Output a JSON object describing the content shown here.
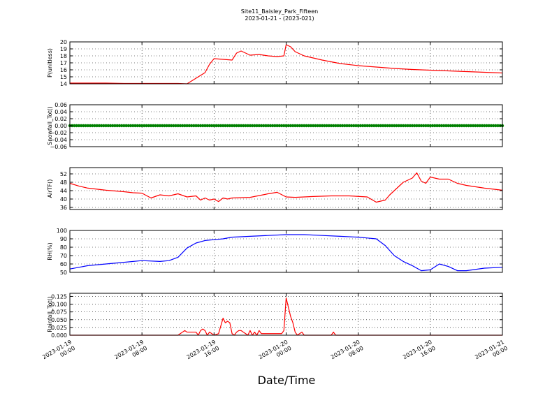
{
  "figure": {
    "title_line1": "Site11_Baisley_Park_Fifteen",
    "title_line2": "2023-01-21 - (2023-021)",
    "xlabel": "Date/Time",
    "x_ticks": [
      {
        "l1": "2023-01-19",
        "l2": "00:00"
      },
      {
        "l1": "2023-01-19",
        "l2": "08:00"
      },
      {
        "l1": "2023-01-19",
        "l2": "16:00"
      },
      {
        "l1": "2023-01-20",
        "l2": "00:00"
      },
      {
        "l1": "2023-01-20",
        "l2": "08:00"
      },
      {
        "l1": "2023-01-20",
        "l2": "16:00"
      },
      {
        "l1": "2023-01-21",
        "l2": "00:00"
      }
    ]
  },
  "chart_data": [
    {
      "type": "line",
      "ylabel": "P(unitless)",
      "color": "#ff0000",
      "ylim": [
        14,
        20
      ],
      "yticks": [
        14,
        15,
        16,
        17,
        18,
        19,
        20
      ],
      "ytick_labels": [
        "14",
        "15",
        "16",
        "17",
        "18",
        "19",
        "20"
      ],
      "xlim": [
        "2023-01-19 00:00",
        "2023-01-21 00:00"
      ],
      "x": [
        "2023-01-19 00:00",
        "2023-01-19 02:00",
        "2023-01-19 04:00",
        "2023-01-19 06:00",
        "2023-01-19 08:00",
        "2023-01-19 10:00",
        "2023-01-19 12:00",
        "2023-01-19 13:00",
        "2023-01-19 14:00",
        "2023-01-19 15:00",
        "2023-01-19 15:30",
        "2023-01-19 16:00",
        "2023-01-19 18:00",
        "2023-01-19 18:30",
        "2023-01-19 19:00",
        "2023-01-19 20:00",
        "2023-01-19 21:00",
        "2023-01-19 22:00",
        "2023-01-19 23:00",
        "2023-01-19 23:45",
        "2023-01-20 00:00",
        "2023-01-20 00:30",
        "2023-01-20 01:00",
        "2023-01-20 02:00",
        "2023-01-20 04:00",
        "2023-01-20 06:00",
        "2023-01-20 08:00",
        "2023-01-20 10:00",
        "2023-01-20 12:00",
        "2023-01-20 14:00",
        "2023-01-20 16:00",
        "2023-01-20 18:00",
        "2023-01-20 20:00",
        "2023-01-20 22:00",
        "2023-01-21 00:00"
      ],
      "values": [
        14.1,
        14.1,
        14.1,
        14.05,
        14.05,
        14.05,
        14.05,
        14.0,
        14.8,
        15.6,
        16.8,
        17.6,
        17.4,
        18.4,
        18.7,
        18.1,
        18.2,
        18.0,
        17.9,
        18.0,
        19.6,
        19.3,
        18.6,
        18.0,
        17.4,
        16.9,
        16.6,
        16.4,
        16.2,
        16.05,
        15.95,
        15.85,
        15.75,
        15.65,
        15.55
      ]
    },
    {
      "type": "scatter",
      "ylabel": "Snowfall_Tot()",
      "color": "#008000",
      "ylim": [
        -0.06,
        0.06
      ],
      "yticks": [
        -0.06,
        -0.04,
        -0.02,
        0.0,
        0.02,
        0.04,
        0.06
      ],
      "ytick_labels": [
        "−0.06",
        "−0.04",
        "−0.02",
        "0.00",
        "0.02",
        "0.04",
        "0.06"
      ],
      "xlim": [
        "2023-01-19 00:00",
        "2023-01-21 00:00"
      ],
      "x_range": [
        "2023-01-19 00:00",
        "2023-01-21 00:00"
      ],
      "interval_minutes": 15,
      "constant_value": 0.0
    },
    {
      "type": "line",
      "ylabel": "AirTF()",
      "color": "#ff0000",
      "ylim": [
        35,
        55
      ],
      "yticks": [
        36,
        40,
        44,
        48,
        52
      ],
      "ytick_labels": [
        "36",
        "40",
        "44",
        "48",
        "52"
      ],
      "xlim": [
        "2023-01-19 00:00",
        "2023-01-21 00:00"
      ],
      "x": [
        "2023-01-19 00:00",
        "2023-01-19 01:00",
        "2023-01-19 02:00",
        "2023-01-19 04:00",
        "2023-01-19 06:00",
        "2023-01-19 07:00",
        "2023-01-19 08:00",
        "2023-01-19 09:00",
        "2023-01-19 10:00",
        "2023-01-19 11:00",
        "2023-01-19 12:00",
        "2023-01-19 13:00",
        "2023-01-19 14:00",
        "2023-01-19 14:30",
        "2023-01-19 15:00",
        "2023-01-19 15:30",
        "2023-01-19 16:00",
        "2023-01-19 16:30",
        "2023-01-19 17:00",
        "2023-01-19 17:30",
        "2023-01-19 18:00",
        "2023-01-19 20:00",
        "2023-01-19 22:00",
        "2023-01-19 23:00",
        "2023-01-20 00:00",
        "2023-01-20 01:00",
        "2023-01-20 03:00",
        "2023-01-20 05:00",
        "2023-01-20 07:00",
        "2023-01-20 09:00",
        "2023-01-20 10:00",
        "2023-01-20 11:00",
        "2023-01-20 11:30",
        "2023-01-20 12:00",
        "2023-01-20 13:00",
        "2023-01-20 14:00",
        "2023-01-20 14:30",
        "2023-01-20 15:00",
        "2023-01-20 15:30",
        "2023-01-20 16:00",
        "2023-01-20 17:00",
        "2023-01-20 18:00",
        "2023-01-20 18:30",
        "2023-01-20 19:00",
        "2023-01-20 20:00",
        "2023-01-20 22:00",
        "2023-01-21 00:00"
      ],
      "values": [
        47.5,
        46.2,
        45.2,
        44.2,
        43.5,
        43.0,
        42.8,
        40.5,
        42.0,
        41.5,
        42.5,
        41.0,
        41.5,
        39.5,
        40.5,
        39.5,
        40.0,
        38.8,
        40.5,
        40.0,
        40.5,
        40.8,
        42.5,
        43.2,
        41.0,
        40.8,
        41.2,
        41.5,
        41.5,
        41.0,
        38.5,
        39.5,
        42.0,
        44.0,
        48.0,
        50.0,
        52.5,
        48.5,
        47.5,
        50.5,
        49.5,
        49.5,
        48.5,
        47.5,
        46.5,
        45.2,
        44.2
      ]
    },
    {
      "type": "line",
      "ylabel": "RH(%)",
      "color": "#0000ff",
      "ylim": [
        50,
        100
      ],
      "yticks": [
        50,
        60,
        70,
        80,
        90,
        100
      ],
      "ytick_labels": [
        "50",
        "60",
        "70",
        "80",
        "90",
        "100"
      ],
      "xlim": [
        "2023-01-19 00:00",
        "2023-01-21 00:00"
      ],
      "x": [
        "2023-01-19 00:00",
        "2023-01-19 02:00",
        "2023-01-19 04:00",
        "2023-01-19 06:00",
        "2023-01-19 08:00",
        "2023-01-19 10:00",
        "2023-01-19 11:00",
        "2023-01-19 12:00",
        "2023-01-19 13:00",
        "2023-01-19 14:00",
        "2023-01-19 15:00",
        "2023-01-19 16:00",
        "2023-01-19 17:00",
        "2023-01-19 18:00",
        "2023-01-19 20:00",
        "2023-01-19 22:00",
        "2023-01-20 00:00",
        "2023-01-20 02:00",
        "2023-01-20 04:00",
        "2023-01-20 06:00",
        "2023-01-20 08:00",
        "2023-01-20 09:00",
        "2023-01-20 10:00",
        "2023-01-20 11:00",
        "2023-01-20 12:00",
        "2023-01-20 13:00",
        "2023-01-20 14:00",
        "2023-01-20 15:00",
        "2023-01-20 16:00",
        "2023-01-20 17:00",
        "2023-01-20 18:00",
        "2023-01-20 19:00",
        "2023-01-20 20:00",
        "2023-01-20 22:00",
        "2023-01-21 00:00"
      ],
      "values": [
        54,
        58,
        60,
        62,
        64,
        63,
        64,
        68,
        79,
        85,
        88,
        89,
        90,
        92,
        93,
        94,
        95,
        95,
        94,
        93,
        92,
        91,
        90,
        82,
        70,
        63,
        58,
        52,
        53,
        60,
        57,
        52,
        52,
        55,
        56
      ]
    },
    {
      "type": "line",
      "ylabel": "Rainfall_Tot()",
      "color": "#ff0000",
      "ylim": [
        0,
        0.135
      ],
      "yticks": [
        0,
        0.025,
        0.05,
        0.075,
        0.1,
        0.125
      ],
      "ytick_labels": [
        "0.000",
        "0.025",
        "0.050",
        "0.075",
        "0.100",
        "0.125"
      ],
      "xlim": [
        "2023-01-19 00:00",
        "2023-01-21 00:00"
      ],
      "x": [
        "2023-01-19 00:00",
        "2023-01-19 12:00",
        "2023-01-19 12:15",
        "2023-01-19 12:30",
        "2023-01-19 12:45",
        "2023-01-19 13:00",
        "2023-01-19 14:00",
        "2023-01-19 14:15",
        "2023-01-19 14:30",
        "2023-01-19 14:45",
        "2023-01-19 15:00",
        "2023-01-19 15:15",
        "2023-01-19 15:30",
        "2023-01-19 15:45",
        "2023-01-19 16:00",
        "2023-01-19 16:30",
        "2023-01-19 16:45",
        "2023-01-19 17:00",
        "2023-01-19 17:15",
        "2023-01-19 17:30",
        "2023-01-19 17:45",
        "2023-01-19 18:00",
        "2023-01-19 18:15",
        "2023-01-19 18:30",
        "2023-01-19 18:45",
        "2023-01-19 19:00",
        "2023-01-19 19:15",
        "2023-01-19 19:30",
        "2023-01-19 19:45",
        "2023-01-19 20:00",
        "2023-01-19 20:15",
        "2023-01-19 20:30",
        "2023-01-19 20:45",
        "2023-01-19 21:00",
        "2023-01-19 21:15",
        "2023-01-19 21:30",
        "2023-01-19 21:45",
        "2023-01-19 22:00",
        "2023-01-19 22:15",
        "2023-01-19 22:30",
        "2023-01-19 23:30",
        "2023-01-19 23:45",
        "2023-01-20 00:00",
        "2023-01-20 00:15",
        "2023-01-20 00:30",
        "2023-01-20 00:45",
        "2023-01-20 01:00",
        "2023-01-20 01:15",
        "2023-01-20 01:30",
        "2023-01-20 01:45",
        "2023-01-20 02:00",
        "2023-01-20 05:00",
        "2023-01-20 05:15",
        "2023-01-20 05:30",
        "2023-01-21 00:00"
      ],
      "values": [
        0,
        0,
        0.005,
        0.01,
        0.015,
        0.01,
        0.01,
        0.0,
        0.015,
        0.02,
        0.015,
        0.0,
        0.01,
        0.005,
        0.0,
        0.005,
        0.03,
        0.055,
        0.04,
        0.045,
        0.04,
        0.005,
        0.0,
        0.01,
        0.015,
        0.015,
        0.01,
        0.005,
        0.0,
        0.015,
        0.0,
        0.01,
        0.0,
        0.015,
        0.005,
        0.005,
        0.005,
        0.005,
        0.005,
        0.005,
        0.005,
        0.015,
        0.12,
        0.09,
        0.06,
        0.04,
        0.01,
        0.0,
        0.005,
        0.01,
        0.0,
        0.0,
        0.01,
        0.0,
        0
      ]
    }
  ]
}
